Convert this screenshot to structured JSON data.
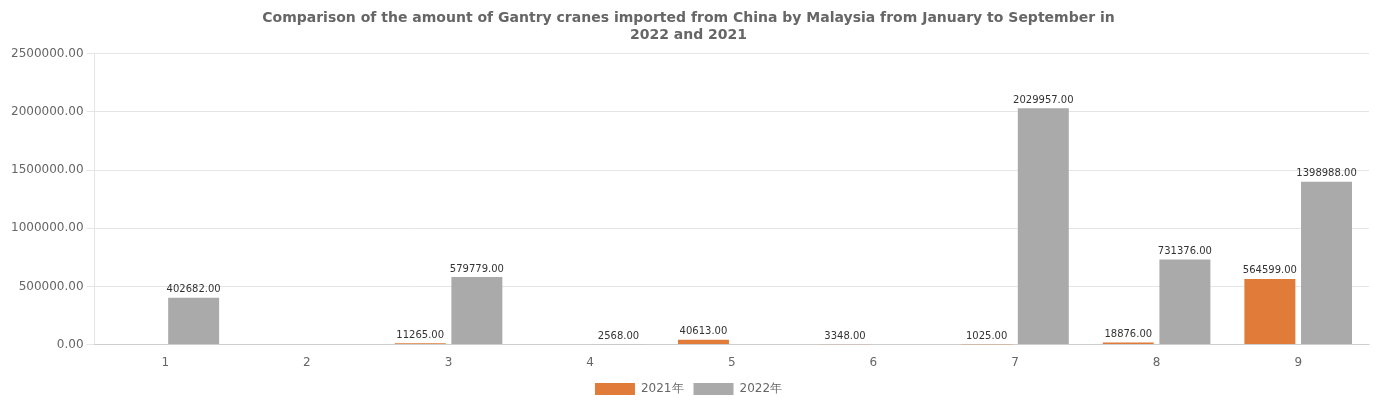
{
  "chart_data": {
    "type": "bar",
    "title": [
      "Comparison of the amount of Gantry cranes imported from China by Malaysia from January to September in",
      "2022 and 2021"
    ],
    "categories": [
      "1",
      "2",
      "3",
      "4",
      "5",
      "6",
      "7",
      "8",
      "9"
    ],
    "series": [
      {
        "name": "2021年",
        "color": "#E07B39",
        "values": [
          0,
          0,
          11265,
          0,
          40613,
          3348,
          1025,
          18876,
          564599
        ],
        "value_labels": [
          null,
          null,
          "11265.00",
          null,
          "40613.00",
          "3348.00",
          "1025.00",
          "18876.00",
          "564599.00"
        ]
      },
      {
        "name": "2022年",
        "color": "#AAAAAA",
        "values": [
          402682,
          0,
          579779,
          2568,
          0,
          0,
          2029957,
          731376,
          1398988
        ],
        "value_labels": [
          "402682.00",
          null,
          "579779.00",
          "2568.00",
          null,
          null,
          "2029957.00",
          "731376.00",
          "1398988.00"
        ]
      }
    ],
    "ylim": [
      0,
      2500000
    ],
    "yticks": [
      {
        "value": 0,
        "label": "0.00"
      },
      {
        "value": 500000,
        "label": "500000.00"
      },
      {
        "value": 1000000,
        "label": "1000000.00"
      },
      {
        "value": 1500000,
        "label": "1500000.00"
      },
      {
        "value": 2000000,
        "label": "2000000.00"
      },
      {
        "value": 2500000,
        "label": "2500000.00"
      }
    ],
    "grid": true,
    "legend": "bottom",
    "data_labels": true
  }
}
